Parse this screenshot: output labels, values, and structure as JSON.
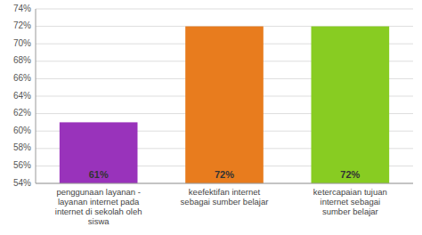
{
  "chart_data": {
    "type": "bar",
    "categories": [
      "penggunaan layanan -\nlayanan internet pada\ninternet di sekolah oleh\nsiswa",
      "keefektifan internet\nsebagai sumber belajar",
      "ketercapaian tujuan\ninternet sebagai\nsumber belajar"
    ],
    "values": [
      61,
      72,
      72
    ],
    "value_labels": [
      "61%",
      "72%",
      "72%"
    ],
    "colors": [
      "#9933bb",
      "#e87c1e",
      "#88cc22"
    ],
    "ylim": [
      54,
      74
    ],
    "yticks": [
      {
        "value": 54,
        "label": "54%"
      },
      {
        "value": 56,
        "label": "56%"
      },
      {
        "value": 58,
        "label": "58%"
      },
      {
        "value": 60,
        "label": "60%"
      },
      {
        "value": 62,
        "label": "62%"
      },
      {
        "value": 64,
        "label": "64%"
      },
      {
        "value": 66,
        "label": "66%"
      },
      {
        "value": 68,
        "label": "68%"
      },
      {
        "value": 70,
        "label": "70%"
      },
      {
        "value": 72,
        "label": "72%"
      },
      {
        "value": 74,
        "label": "74%"
      }
    ],
    "grid": true,
    "data_labels": true
  }
}
